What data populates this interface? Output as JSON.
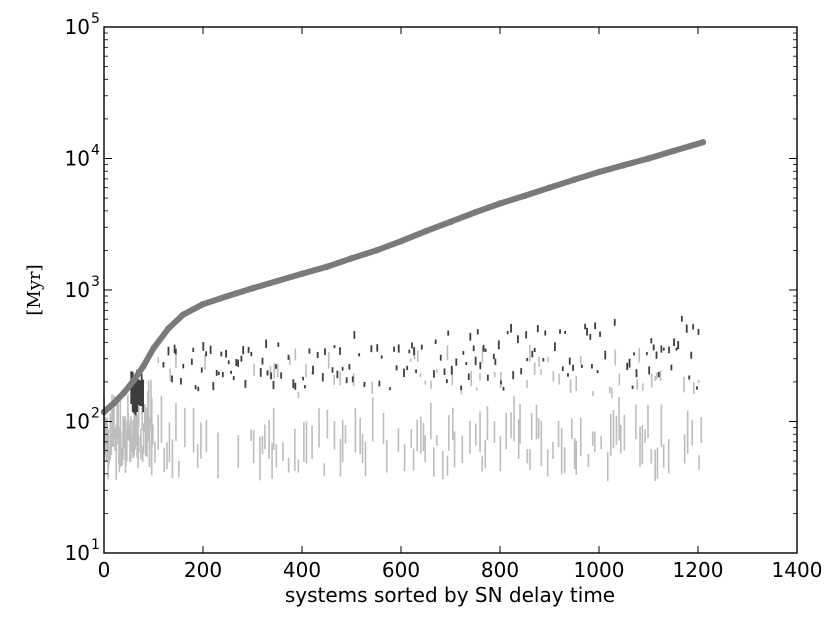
{
  "chart_data": {
    "type": "scatter",
    "title": "",
    "xlabel": "systems sorted by SN delay time",
    "ylabel": "[Myr]",
    "xlim": [
      0,
      1400
    ],
    "ylim": [
      10,
      100000
    ],
    "yscale": "log",
    "grid": false,
    "x_ticks": [
      0,
      200,
      400,
      600,
      800,
      1000,
      1200,
      1400
    ],
    "y_ticks": [
      {
        "value": 10,
        "base": "10",
        "exp": "1"
      },
      {
        "value": 100,
        "base": "10",
        "exp": "2"
      },
      {
        "value": 1000,
        "base": "10",
        "exp": "3"
      },
      {
        "value": 10000,
        "base": "10",
        "exp": "4"
      },
      {
        "value": 100000,
        "base": "10",
        "exp": "5"
      }
    ],
    "colors": {
      "delay_curve": "#7a7a7a",
      "light_ranges": "#bdbdbd",
      "dark_ranges": "#3d3d3d",
      "axes": "#000000"
    },
    "delay_curve": {
      "x": [
        0,
        20,
        40,
        60,
        80,
        100,
        130,
        160,
        200,
        250,
        300,
        350,
        400,
        450,
        500,
        550,
        600,
        650,
        700,
        750,
        800,
        850,
        900,
        950,
        1000,
        1050,
        1100,
        1150,
        1210
      ],
      "y": [
        118,
        138,
        165,
        205,
        265,
        360,
        510,
        650,
        780,
        900,
        1030,
        1170,
        1330,
        1500,
        1740,
        2000,
        2350,
        2800,
        3300,
        3900,
        4550,
        5200,
        6000,
        6900,
        7900,
        8900,
        10000,
        11400,
        13300
      ]
    },
    "light_ranges": {
      "n_systems": 1210,
      "low_band": [
        35,
        75
      ],
      "high_band": [
        150,
        300
      ]
    },
    "dark_ranges": {
      "x_start": 120,
      "x_end": 1210,
      "band": [
        170,
        600
      ]
    }
  }
}
